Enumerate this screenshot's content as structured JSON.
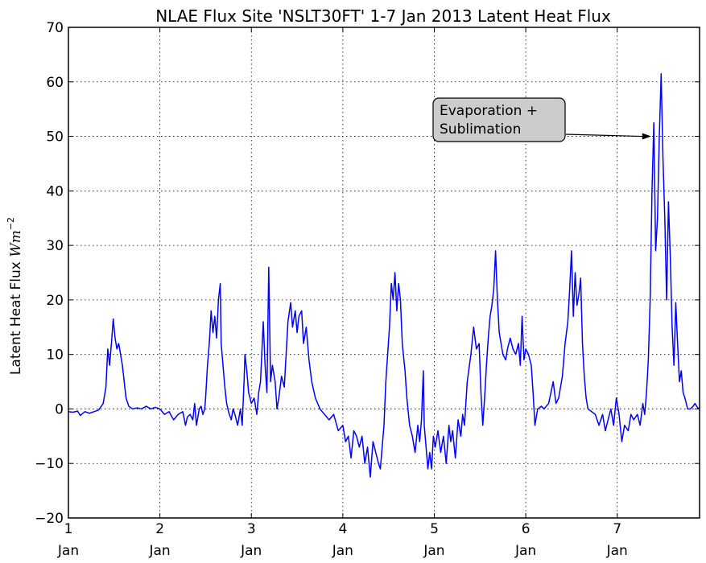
{
  "chart_data": {
    "type": "line",
    "title": "NLAE Flux Site 'NSLT30FT' 1-7 Jan 2013 Latent Heat Flux",
    "ylabel_text": "Latent Heat Flux ",
    "ylabel_math": "Wm",
    "ylabel_exp": "−2",
    "xlabel": "",
    "ylim": [
      -20,
      70
    ],
    "xlim": [
      1,
      7.9
    ],
    "yticks": [
      -20,
      -10,
      0,
      10,
      20,
      30,
      40,
      50,
      60,
      70
    ],
    "xticks": [
      {
        "value": 1,
        "day": "1",
        "month": "Jan"
      },
      {
        "value": 2,
        "day": "2",
        "month": "Jan"
      },
      {
        "value": 3,
        "day": "3",
        "month": "Jan"
      },
      {
        "value": 4,
        "day": "4",
        "month": "Jan"
      },
      {
        "value": 5,
        "day": "5",
        "month": "Jan"
      },
      {
        "value": 6,
        "day": "6",
        "month": "Jan"
      },
      {
        "value": 7,
        "day": "7",
        "month": "Jan"
      }
    ],
    "grid": true,
    "line_color": "#0000ff",
    "annotation": {
      "text_lines": [
        "Evaporation +",
        "Sublimation"
      ],
      "target": {
        "x": 7.37,
        "y": 50
      }
    },
    "series": [
      {
        "points": [
          [
            1.0,
            -0.5
          ],
          [
            1.05,
            -0.6
          ],
          [
            1.1,
            -0.4
          ],
          [
            1.13,
            -1.2
          ],
          [
            1.18,
            -0.5
          ],
          [
            1.23,
            -0.8
          ],
          [
            1.28,
            -0.5
          ],
          [
            1.33,
            -0.2
          ],
          [
            1.38,
            1
          ],
          [
            1.41,
            4
          ],
          [
            1.43,
            11
          ],
          [
            1.45,
            8
          ],
          [
            1.47,
            12
          ],
          [
            1.49,
            16.5
          ],
          [
            1.51,
            13
          ],
          [
            1.53,
            11
          ],
          [
            1.55,
            12
          ],
          [
            1.57,
            10
          ],
          [
            1.59,
            8
          ],
          [
            1.61,
            5
          ],
          [
            1.63,
            2
          ],
          [
            1.66,
            0.5
          ],
          [
            1.7,
            0
          ],
          [
            1.75,
            0.2
          ],
          [
            1.8,
            0
          ],
          [
            1.85,
            0.5
          ],
          [
            1.9,
            0
          ],
          [
            1.95,
            0.3
          ],
          [
            2.0,
            0
          ],
          [
            2.05,
            -1
          ],
          [
            2.1,
            -0.5
          ],
          [
            2.15,
            -2
          ],
          [
            2.2,
            -1
          ],
          [
            2.25,
            -0.5
          ],
          [
            2.28,
            -3
          ],
          [
            2.3,
            -1.5
          ],
          [
            2.33,
            -1
          ],
          [
            2.36,
            -2
          ],
          [
            2.38,
            1
          ],
          [
            2.4,
            -3
          ],
          [
            2.43,
            0
          ],
          [
            2.45,
            0.5
          ],
          [
            2.47,
            -1
          ],
          [
            2.49,
            0
          ],
          [
            2.5,
            2
          ],
          [
            2.52,
            8
          ],
          [
            2.54,
            12
          ],
          [
            2.56,
            18
          ],
          [
            2.58,
            14
          ],
          [
            2.6,
            17
          ],
          [
            2.62,
            13
          ],
          [
            2.64,
            20
          ],
          [
            2.66,
            23
          ],
          [
            2.67,
            12
          ],
          [
            2.69,
            8
          ],
          [
            2.71,
            4
          ],
          [
            2.73,
            1
          ],
          [
            2.75,
            -0.5
          ],
          [
            2.78,
            -2
          ],
          [
            2.8,
            0
          ],
          [
            2.82,
            -1
          ],
          [
            2.85,
            -3
          ],
          [
            2.88,
            0
          ],
          [
            2.9,
            -3
          ],
          [
            2.92,
            5
          ],
          [
            2.93,
            10
          ],
          [
            2.95,
            7
          ],
          [
            2.97,
            3
          ],
          [
            3.0,
            1
          ],
          [
            3.03,
            2
          ],
          [
            3.06,
            -1
          ],
          [
            3.08,
            3
          ],
          [
            3.1,
            5
          ],
          [
            3.13,
            16
          ],
          [
            3.15,
            8
          ],
          [
            3.17,
            3
          ],
          [
            3.19,
            26
          ],
          [
            3.21,
            5
          ],
          [
            3.23,
            8
          ],
          [
            3.26,
            5
          ],
          [
            3.28,
            0
          ],
          [
            3.3,
            2
          ],
          [
            3.33,
            6
          ],
          [
            3.36,
            4
          ],
          [
            3.38,
            10
          ],
          [
            3.4,
            16
          ],
          [
            3.43,
            19.5
          ],
          [
            3.45,
            15
          ],
          [
            3.48,
            18
          ],
          [
            3.5,
            14
          ],
          [
            3.52,
            17
          ],
          [
            3.55,
            18
          ],
          [
            3.57,
            12
          ],
          [
            3.6,
            15
          ],
          [
            3.63,
            9
          ],
          [
            3.66,
            5
          ],
          [
            3.7,
            2
          ],
          [
            3.75,
            0
          ],
          [
            3.8,
            -1
          ],
          [
            3.85,
            -2
          ],
          [
            3.9,
            -1
          ],
          [
            3.95,
            -4
          ],
          [
            4.0,
            -3
          ],
          [
            4.03,
            -6
          ],
          [
            4.06,
            -5
          ],
          [
            4.09,
            -9
          ],
          [
            4.12,
            -4
          ],
          [
            4.15,
            -5
          ],
          [
            4.18,
            -7
          ],
          [
            4.21,
            -5
          ],
          [
            4.24,
            -10
          ],
          [
            4.27,
            -7
          ],
          [
            4.3,
            -12.5
          ],
          [
            4.33,
            -6
          ],
          [
            4.36,
            -8
          ],
          [
            4.39,
            -10
          ],
          [
            4.41,
            -11
          ],
          [
            4.43,
            -7
          ],
          [
            4.45,
            -3
          ],
          [
            4.47,
            5
          ],
          [
            4.49,
            10
          ],
          [
            4.51,
            15
          ],
          [
            4.53,
            23
          ],
          [
            4.55,
            20
          ],
          [
            4.57,
            25
          ],
          [
            4.59,
            18
          ],
          [
            4.61,
            23
          ],
          [
            4.63,
            20
          ],
          [
            4.65,
            12
          ],
          [
            4.68,
            7
          ],
          [
            4.7,
            2
          ],
          [
            4.73,
            -3
          ],
          [
            4.76,
            -5
          ],
          [
            4.79,
            -8
          ],
          [
            4.82,
            -3
          ],
          [
            4.84,
            -6
          ],
          [
            4.86,
            -2
          ],
          [
            4.88,
            7
          ],
          [
            4.89,
            -3
          ],
          [
            4.91,
            -7
          ],
          [
            4.93,
            -11
          ],
          [
            4.95,
            -8
          ],
          [
            4.97,
            -11
          ],
          [
            4.99,
            -5
          ],
          [
            5.01,
            -7
          ],
          [
            5.04,
            -4
          ],
          [
            5.07,
            -8
          ],
          [
            5.1,
            -5
          ],
          [
            5.13,
            -10
          ],
          [
            5.16,
            -3
          ],
          [
            5.18,
            -6
          ],
          [
            5.2,
            -4
          ],
          [
            5.23,
            -9
          ],
          [
            5.26,
            -2
          ],
          [
            5.29,
            -5
          ],
          [
            5.31,
            -1
          ],
          [
            5.33,
            -3
          ],
          [
            5.36,
            5
          ],
          [
            5.4,
            10
          ],
          [
            5.43,
            15
          ],
          [
            5.46,
            11
          ],
          [
            5.49,
            12
          ],
          [
            5.51,
            3
          ],
          [
            5.53,
            -3
          ],
          [
            5.55,
            2
          ],
          [
            5.57,
            8
          ],
          [
            5.59,
            13
          ],
          [
            5.61,
            17
          ],
          [
            5.63,
            19
          ],
          [
            5.65,
            22
          ],
          [
            5.67,
            29
          ],
          [
            5.69,
            20
          ],
          [
            5.71,
            14
          ],
          [
            5.73,
            12
          ],
          [
            5.75,
            10
          ],
          [
            5.78,
            9
          ],
          [
            5.8,
            11
          ],
          [
            5.83,
            13
          ],
          [
            5.86,
            11
          ],
          [
            5.89,
            10
          ],
          [
            5.92,
            12
          ],
          [
            5.94,
            8
          ],
          [
            5.96,
            17
          ],
          [
            5.98,
            9
          ],
          [
            6.0,
            11
          ],
          [
            6.03,
            10
          ],
          [
            6.06,
            8
          ],
          [
            6.08,
            3
          ],
          [
            6.1,
            -3
          ],
          [
            6.13,
            0
          ],
          [
            6.17,
            0.5
          ],
          [
            6.2,
            0
          ],
          [
            6.25,
            1
          ],
          [
            6.3,
            5
          ],
          [
            6.33,
            1
          ],
          [
            6.36,
            2
          ],
          [
            6.4,
            6
          ],
          [
            6.43,
            12
          ],
          [
            6.46,
            16
          ],
          [
            6.48,
            22
          ],
          [
            6.5,
            29
          ],
          [
            6.52,
            17
          ],
          [
            6.54,
            25
          ],
          [
            6.56,
            19
          ],
          [
            6.58,
            21
          ],
          [
            6.6,
            24
          ],
          [
            6.62,
            12
          ],
          [
            6.64,
            6
          ],
          [
            6.66,
            2
          ],
          [
            6.68,
            0
          ],
          [
            6.72,
            -0.5
          ],
          [
            6.76,
            -1
          ],
          [
            6.8,
            -3
          ],
          [
            6.84,
            -1
          ],
          [
            6.87,
            -4
          ],
          [
            6.9,
            -2
          ],
          [
            6.93,
            0
          ],
          [
            6.96,
            -3
          ],
          [
            6.99,
            2
          ],
          [
            7.02,
            -1
          ],
          [
            7.05,
            -6
          ],
          [
            7.08,
            -3
          ],
          [
            7.12,
            -4
          ],
          [
            7.15,
            -1
          ],
          [
            7.18,
            -2
          ],
          [
            7.22,
            -1
          ],
          [
            7.25,
            -3
          ],
          [
            7.28,
            1
          ],
          [
            7.3,
            -1
          ],
          [
            7.32,
            3
          ],
          [
            7.34,
            9
          ],
          [
            7.36,
            20
          ],
          [
            7.38,
            40
          ],
          [
            7.4,
            52.5
          ],
          [
            7.42,
            29
          ],
          [
            7.44,
            35
          ],
          [
            7.46,
            50
          ],
          [
            7.48,
            61.5
          ],
          [
            7.5,
            46
          ],
          [
            7.52,
            35
          ],
          [
            7.54,
            20
          ],
          [
            7.56,
            38
          ],
          [
            7.58,
            28
          ],
          [
            7.6,
            15
          ],
          [
            7.62,
            8
          ],
          [
            7.64,
            19.5
          ],
          [
            7.66,
            12
          ],
          [
            7.68,
            5
          ],
          [
            7.7,
            7
          ],
          [
            7.72,
            3
          ],
          [
            7.74,
            2
          ],
          [
            7.77,
            0
          ],
          [
            7.8,
            0
          ],
          [
            7.83,
            0.5
          ],
          [
            7.85,
            1
          ],
          [
            7.88,
            0.2
          ],
          [
            7.9,
            0
          ]
        ]
      }
    ]
  }
}
